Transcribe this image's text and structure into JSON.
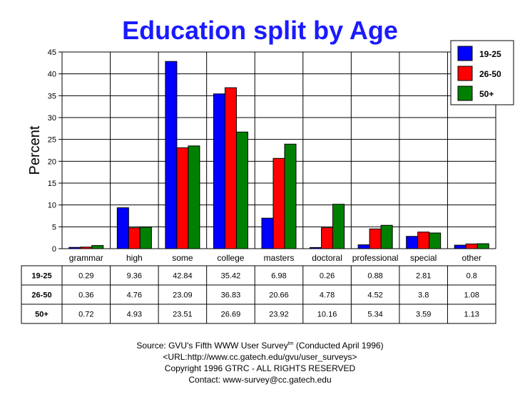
{
  "chart_data": {
    "type": "bar",
    "title": "Education split by Age",
    "ylabel": "Percent",
    "xlabel": "",
    "ylim": [
      0,
      45
    ],
    "yticks": [
      0,
      5,
      10,
      15,
      20,
      25,
      30,
      35,
      40,
      45
    ],
    "grid": true,
    "legend_position": "top-right",
    "categories": [
      "grammar",
      "high",
      "some",
      "college",
      "masters",
      "doctoral",
      "professional",
      "special",
      "other"
    ],
    "series": [
      {
        "name": "19-25",
        "color": "#0000ff",
        "values": [
          0.29,
          9.36,
          42.84,
          35.42,
          6.98,
          0.26,
          0.88,
          2.81,
          0.8
        ]
      },
      {
        "name": "26-50",
        "color": "#ff0000",
        "values": [
          0.36,
          4.76,
          23.09,
          36.83,
          20.66,
          4.78,
          4.52,
          3.8,
          1.08
        ]
      },
      {
        "name": "50+",
        "color": "#008000",
        "values": [
          0.72,
          4.93,
          23.51,
          26.69,
          23.92,
          10.16,
          5.34,
          3.59,
          1.13
        ]
      }
    ]
  },
  "footer": {
    "source_prefix": "Source: GVU's Fifth WWW User Survey",
    "source_sup": "tm",
    "source_suffix": "  (Conducted April 1996)",
    "url": "<URL:http://www.cc.gatech.edu/gvu/user_surveys>",
    "copyright": "Copyright 1996 GTRC -  ALL RIGHTS RESERVED",
    "contact": "Contact: www-survey@cc.gatech.edu"
  }
}
